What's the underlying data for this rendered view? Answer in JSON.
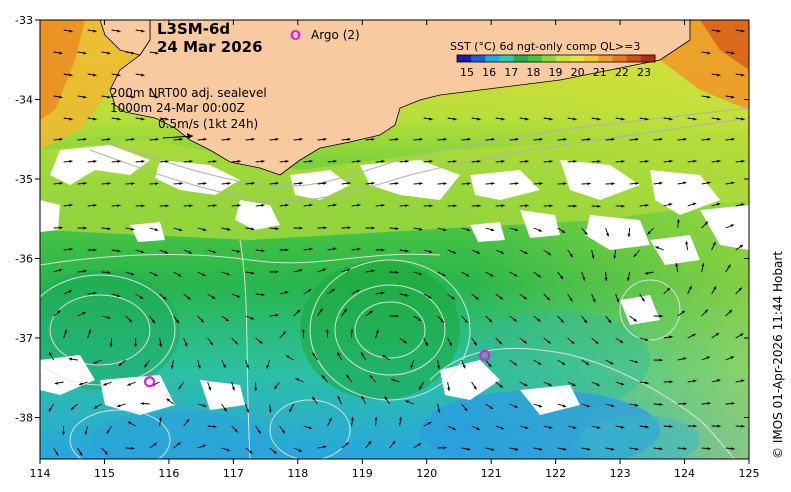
{
  "title": {
    "product": "L3SM-6d",
    "date": "24 Mar 2026"
  },
  "legend": {
    "argo_symbol": "O",
    "argo_label": "Argo (2)",
    "isobath_line1": "200m  NRT00 adj. sealevel",
    "isobath_line2": "1000m 24-Mar 00:00Z",
    "velocity_scale": "0.5m/s (1kt 24h)"
  },
  "colorbar": {
    "title": "SST (°C) 6d ngt-only comp QL>=3",
    "ticks": [
      "15",
      "16",
      "17",
      "18",
      "19",
      "20",
      "21",
      "22",
      "23"
    ],
    "colors": [
      "#1a1aa8",
      "#1e5fd8",
      "#23a6e8",
      "#2fc9b8",
      "#22b04a",
      "#3cc83c",
      "#8cd93a",
      "#c8e63a",
      "#e6e63a",
      "#f2c832",
      "#f0a02a",
      "#e87822",
      "#d84a18",
      "#b42a12"
    ]
  },
  "axes": {
    "x_ticks": [
      "114",
      "115",
      "116",
      "117",
      "118",
      "119",
      "120",
      "121",
      "122",
      "123",
      "124",
      "125"
    ],
    "y_ticks": [
      "-33",
      "-34",
      "-35",
      "-36",
      "-37",
      "-38"
    ]
  },
  "argo_floats": [
    {
      "lon": 115.7,
      "lat": -37.55
    },
    {
      "lon": 120.9,
      "lat": -37.22
    }
  ],
  "credit": "© IMOS 01-Apr-2026 11:44 Hobart",
  "colors": {
    "land": "#f9c9a0",
    "argo": "#e020e0",
    "cloud": "#ffffff"
  }
}
